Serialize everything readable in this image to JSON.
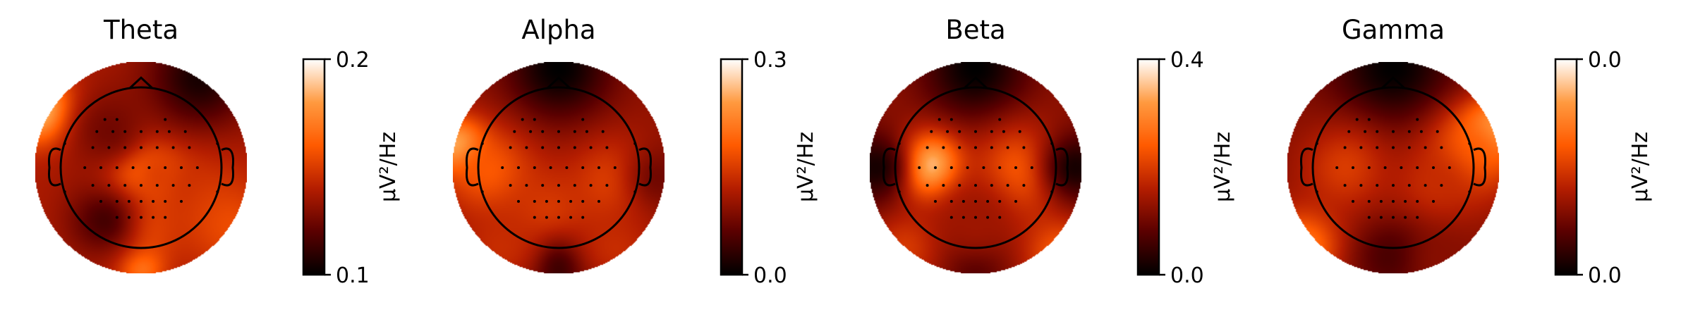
{
  "figure": {
    "colormap": "gist_heat",
    "colormap_stops": [
      "#000000",
      "#5a0000",
      "#b41d00",
      "#ff5a00",
      "#ff9a40",
      "#ffffff"
    ]
  },
  "chart_data": [
    {
      "type": "heatmap",
      "title": "Theta",
      "colorbar": {
        "min_label": "0.1",
        "max_label": "0.2",
        "vmin": 0.1,
        "vmax": 0.2,
        "label": "µV²/Hz"
      },
      "hotspots": [
        {
          "x": 0,
          "y": 0.05,
          "v": 0.95,
          "r": 0.22
        },
        {
          "x": 0.2,
          "y": 0.1,
          "v": 0.6,
          "r": 0.2
        },
        {
          "x": -0.95,
          "y": -0.55,
          "v": 0.95,
          "r": 0.22
        },
        {
          "x": 0,
          "y": 0.55,
          "v": 0.6,
          "r": 0.25
        },
        {
          "x": 0,
          "y": 0.95,
          "v": 0.7,
          "r": 0.15
        },
        {
          "x": 0.55,
          "y": -0.85,
          "v": 0.05,
          "r": 0.35
        },
        {
          "x": -0.35,
          "y": 0.5,
          "v": 0.15,
          "r": 0.25
        },
        {
          "x": -0.3,
          "y": -0.35,
          "v": 0.25,
          "r": 0.3
        },
        {
          "x": 0.55,
          "y": 0.25,
          "v": 0.45,
          "r": 0.3
        },
        {
          "x": 0.85,
          "y": 0.55,
          "v": 0.55,
          "r": 0.3
        }
      ],
      "base": 0.38
    },
    {
      "type": "heatmap",
      "title": "Alpha",
      "colorbar": {
        "min_label": "0.0",
        "max_label": "0.3",
        "vmin": 0.0,
        "vmax": 0.3,
        "label": "µV²/Hz"
      },
      "hotspots": [
        {
          "x": 0,
          "y": -0.95,
          "v": 0.0,
          "r": 0.35
        },
        {
          "x": -0.95,
          "y": -0.2,
          "v": 0.95,
          "r": 0.18
        },
        {
          "x": -0.65,
          "y": 0.05,
          "v": 0.6,
          "r": 0.3
        },
        {
          "x": 0.55,
          "y": 0.15,
          "v": 0.55,
          "r": 0.3
        },
        {
          "x": -0.1,
          "y": 0.45,
          "v": 0.5,
          "r": 0.3
        },
        {
          "x": 0,
          "y": 0.95,
          "v": 0.1,
          "r": 0.2
        },
        {
          "x": 0.55,
          "y": 0.75,
          "v": 0.45,
          "r": 0.25
        },
        {
          "x": -0.55,
          "y": 0.75,
          "v": 0.45,
          "r": 0.25
        },
        {
          "x": 0.95,
          "y": 0.1,
          "v": 0.25,
          "r": 0.25
        }
      ],
      "base": 0.33
    },
    {
      "type": "heatmap",
      "title": "Beta",
      "colorbar": {
        "min_label": "0.0",
        "max_label": "0.4",
        "vmin": 0.0,
        "vmax": 0.4,
        "label": "µV²/Hz"
      },
      "hotspots": [
        {
          "x": 0,
          "y": -0.95,
          "v": 0.0,
          "r": 0.35
        },
        {
          "x": -0.45,
          "y": 0.0,
          "v": 1.0,
          "r": 0.22
        },
        {
          "x": 0.45,
          "y": 0.05,
          "v": 0.65,
          "r": 0.3
        },
        {
          "x": 0.8,
          "y": 0.8,
          "v": 0.6,
          "r": 0.25
        },
        {
          "x": -0.65,
          "y": 0.75,
          "v": 0.5,
          "r": 0.25
        },
        {
          "x": -0.95,
          "y": 0.0,
          "v": 0.05,
          "r": 0.25
        },
        {
          "x": 0.95,
          "y": 0.0,
          "v": 0.05,
          "r": 0.25
        },
        {
          "x": 0,
          "y": 0.95,
          "v": 0.15,
          "r": 0.2
        },
        {
          "x": 0,
          "y": 0.5,
          "v": 0.35,
          "r": 0.3
        }
      ],
      "base": 0.32
    },
    {
      "type": "heatmap",
      "title": "Gamma",
      "colorbar": {
        "min_label": "0.0",
        "max_label": "0.0",
        "vmin": 0.0,
        "vmax": 0.0,
        "label": "µV²/Hz"
      },
      "hotspots": [
        {
          "x": 0,
          "y": -0.95,
          "v": 0.0,
          "r": 0.4
        },
        {
          "x": 0.95,
          "y": -0.35,
          "v": 0.95,
          "r": 0.2
        },
        {
          "x": 0.75,
          "y": -0.15,
          "v": 0.65,
          "r": 0.3
        },
        {
          "x": -0.85,
          "y": 0.75,
          "v": 0.7,
          "r": 0.25
        },
        {
          "x": -0.45,
          "y": 0.0,
          "v": 0.5,
          "r": 0.3
        },
        {
          "x": 0.4,
          "y": 0.2,
          "v": 0.45,
          "r": 0.3
        },
        {
          "x": 0,
          "y": 0.85,
          "v": 0.15,
          "r": 0.25
        },
        {
          "x": 0.5,
          "y": 0.9,
          "v": 0.3,
          "r": 0.25
        }
      ],
      "base": 0.3
    }
  ],
  "sensors": [
    [
      -0.45,
      -0.6
    ],
    [
      -0.3,
      -0.6
    ],
    [
      0.3,
      -0.6
    ],
    [
      -0.55,
      -0.45
    ],
    [
      -0.35,
      -0.45
    ],
    [
      -0.2,
      -0.45
    ],
    [
      0,
      -0.45
    ],
    [
      0.2,
      -0.45
    ],
    [
      0.35,
      -0.45
    ],
    [
      0.55,
      -0.45
    ],
    [
      -0.6,
      -0.25
    ],
    [
      -0.4,
      -0.25
    ],
    [
      -0.2,
      -0.25
    ],
    [
      0,
      -0.25
    ],
    [
      0.2,
      -0.25
    ],
    [
      0.4,
      -0.25
    ],
    [
      0.6,
      -0.25
    ],
    [
      -0.7,
      0
    ],
    [
      -0.5,
      0
    ],
    [
      -0.3,
      0
    ],
    [
      -0.1,
      0
    ],
    [
      0.1,
      0
    ],
    [
      0.3,
      0
    ],
    [
      0.5,
      0
    ],
    [
      0.7,
      0
    ],
    [
      -0.6,
      0.22
    ],
    [
      -0.4,
      0.22
    ],
    [
      -0.2,
      0.22
    ],
    [
      0,
      0.22
    ],
    [
      0.2,
      0.22
    ],
    [
      0.4,
      0.22
    ],
    [
      0.6,
      0.22
    ],
    [
      -0.5,
      0.42
    ],
    [
      -0.3,
      0.42
    ],
    [
      -0.15,
      0.42
    ],
    [
      0,
      0.42
    ],
    [
      0.15,
      0.42
    ],
    [
      0.3,
      0.42
    ],
    [
      0.5,
      0.42
    ],
    [
      -0.3,
      0.62
    ],
    [
      -0.15,
      0.62
    ],
    [
      0,
      0.62
    ],
    [
      0.15,
      0.62
    ],
    [
      0.3,
      0.62
    ],
    [
      -0.95,
      -0.3
    ],
    [
      0.95,
      -0.3
    ],
    [
      -0.95,
      0.3
    ],
    [
      0.95,
      0.3
    ]
  ]
}
